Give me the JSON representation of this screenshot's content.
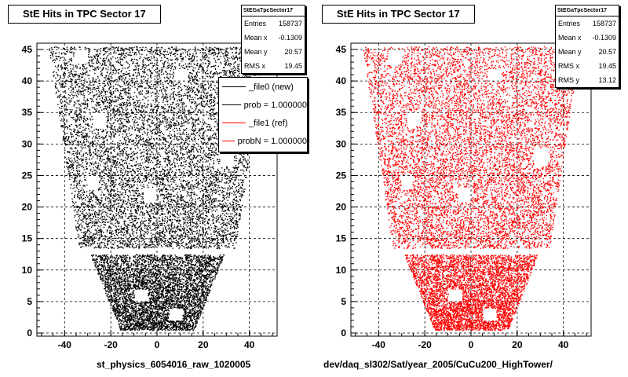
{
  "panels": [
    {
      "title": "StE Hits in TPC Sector 17",
      "caption": "st_physics_6054016_raw_1020005",
      "color": "#000000",
      "stats": {
        "name": "StEGaTpcSector17",
        "rows": [
          {
            "label": "Entries",
            "value": "158737"
          },
          {
            "label": "Mean x",
            "value": "-0.1309"
          },
          {
            "label": "Mean y",
            "value": "20.57"
          },
          {
            "label": "RMS x",
            "value": "19.45"
          }
        ]
      },
      "legend": [
        {
          "label": "_file0 (new)",
          "color": "#000000"
        },
        {
          "label": "prob = 1.000000",
          "color": "#000000"
        },
        {
          "label": "_file1 (ref)",
          "color": "#ff0000"
        },
        {
          "label": "probN = 1.000000",
          "color": "#ff0000"
        }
      ]
    },
    {
      "title": "StE Hits in TPC Sector 17",
      "caption": "dev/daq_sl302/Sat/year_2005/CuCu200_HighTower/",
      "color": "#ff0000",
      "stats": {
        "name": "StEGaTpcSector17",
        "rows": [
          {
            "label": "Entries",
            "value": "158737"
          },
          {
            "label": "Mean x",
            "value": "-0.1309"
          },
          {
            "label": "Mean y",
            "value": "20.57"
          },
          {
            "label": "RMS x",
            "value": "19.45"
          },
          {
            "label": "RMS y",
            "value": "13.12"
          }
        ]
      }
    }
  ],
  "chart_data": [
    {
      "type": "scatter",
      "title": "StE Hits in TPC Sector 17",
      "series_color": "#000000",
      "xlim": [
        -52,
        52
      ],
      "ylim": [
        -0.5,
        46
      ],
      "xticks": [
        -40,
        -20,
        0,
        20,
        40
      ],
      "yticks": [
        0,
        5,
        10,
        15,
        20,
        25,
        30,
        35,
        40,
        45
      ],
      "grid": true,
      "outer_region": {
        "y_range": [
          13.5,
          45.5
        ],
        "halfwidth_at_bottom": 34,
        "halfwidth_at_top": 47
      },
      "gap": [
        12.5,
        13.5
      ],
      "inner_region": {
        "y_range": [
          0.5,
          12.5
        ],
        "halfwidth_at_bottom": 16,
        "halfwidth_at_top": 29
      }
    },
    {
      "type": "scatter",
      "title": "StE Hits in TPC Sector 17",
      "series_color": "#ff0000",
      "xlim": [
        -52,
        52
      ],
      "ylim": [
        -0.5,
        46
      ],
      "xticks": [
        -40,
        -20,
        0,
        20,
        40
      ],
      "yticks": [
        0,
        5,
        10,
        15,
        20,
        25,
        30,
        35,
        40,
        45
      ],
      "grid": true,
      "outer_region": {
        "y_range": [
          13.5,
          45.5
        ],
        "halfwidth_at_bottom": 34,
        "halfwidth_at_top": 47
      },
      "gap": [
        12.5,
        13.5
      ],
      "inner_region": {
        "y_range": [
          0.5,
          12.5
        ],
        "halfwidth_at_bottom": 16,
        "halfwidth_at_top": 29
      }
    }
  ]
}
